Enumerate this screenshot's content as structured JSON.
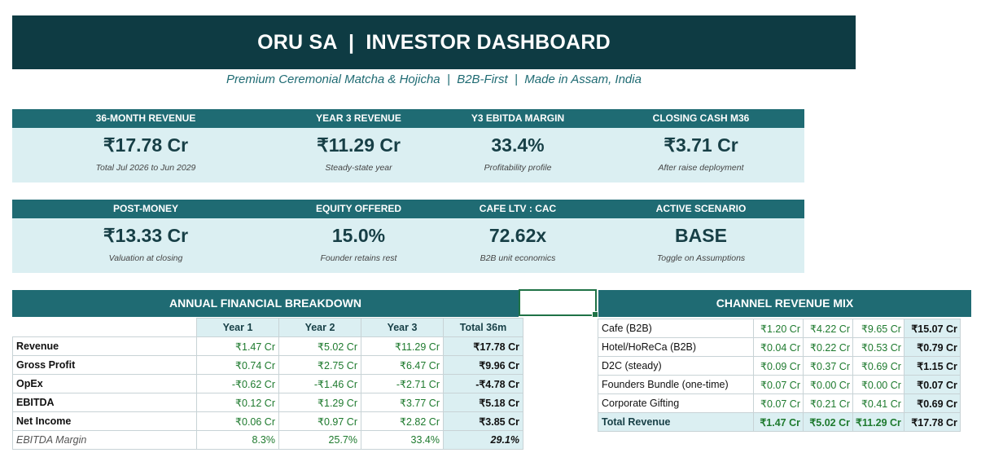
{
  "header": {
    "title": "ORU SA  |  INVESTOR DASHBOARD",
    "subtitle": "Premium Ceremonial Matcha & Hojicha  |  B2B-First  |  Made in Assam, India"
  },
  "kpis_row1": [
    {
      "label": "36-MONTH REVENUE",
      "value": "₹17.78 Cr",
      "note": "Total Jul 2026 to Jun 2029"
    },
    {
      "label": "YEAR 3 REVENUE",
      "value": "₹11.29 Cr",
      "note": "Steady-state year"
    },
    {
      "label": "Y3 EBITDA MARGIN",
      "value": "33.4%",
      "note": "Profitability profile"
    },
    {
      "label": "CLOSING CASH M36",
      "value": "₹3.71 Cr",
      "note": "After raise deployment"
    }
  ],
  "kpis_row2": [
    {
      "label": "POST-MONEY",
      "value": "₹13.33 Cr",
      "note": "Valuation at closing"
    },
    {
      "label": "EQUITY OFFERED",
      "value": "15.0%",
      "note": "Founder retains rest"
    },
    {
      "label": "CAFE LTV : CAC",
      "value": "72.62x",
      "note": "B2B unit economics"
    },
    {
      "label": "ACTIVE SCENARIO",
      "value": "BASE",
      "note": "Toggle on Assumptions"
    }
  ],
  "financials": {
    "title": "ANNUAL FINANCIAL BREAKDOWN",
    "columns": [
      "Year 1",
      "Year 2",
      "Year 3",
      "Total 36m"
    ],
    "rows": [
      {
        "label": "Revenue",
        "y1": "₹1.47 Cr",
        "y2": "₹5.02 Cr",
        "y3": "₹11.29 Cr",
        "total": "₹17.78 Cr"
      },
      {
        "label": "Gross Profit",
        "y1": "₹0.74 Cr",
        "y2": "₹2.75 Cr",
        "y3": "₹6.47 Cr",
        "total": "₹9.96 Cr"
      },
      {
        "label": "OpEx",
        "y1": "-₹0.62 Cr",
        "y2": "-₹1.46 Cr",
        "y3": "-₹2.71 Cr",
        "total": "-₹4.78 Cr"
      },
      {
        "label": "EBITDA",
        "y1": "₹0.12 Cr",
        "y2": "₹1.29 Cr",
        "y3": "₹3.77 Cr",
        "total": "₹5.18 Cr"
      },
      {
        "label": "Net Income",
        "y1": "₹0.06 Cr",
        "y2": "₹0.97 Cr",
        "y3": "₹2.82 Cr",
        "total": "₹3.85 Cr"
      },
      {
        "label": "EBITDA Margin",
        "y1": "8.3%",
        "y2": "25.7%",
        "y3": "33.4%",
        "total": "29.1%"
      }
    ]
  },
  "channel_mix": {
    "title": "CHANNEL REVENUE MIX",
    "rows": [
      {
        "label": "Cafe (B2B)",
        "y1": "₹1.20 Cr",
        "y2": "₹4.22 Cr",
        "y3": "₹9.65 Cr",
        "total": "₹15.07 Cr"
      },
      {
        "label": "Hotel/HoReCa (B2B)",
        "y1": "₹0.04 Cr",
        "y2": "₹0.22 Cr",
        "y3": "₹0.53 Cr",
        "total": "₹0.79 Cr"
      },
      {
        "label": "D2C (steady)",
        "y1": "₹0.09 Cr",
        "y2": "₹0.37 Cr",
        "y3": "₹0.69 Cr",
        "total": "₹1.15 Cr"
      },
      {
        "label": "Founders Bundle (one-time)",
        "y1": "₹0.07 Cr",
        "y2": "₹0.00 Cr",
        "y3": "₹0.00 Cr",
        "total": "₹0.07 Cr"
      },
      {
        "label": "Corporate Gifting",
        "y1": "₹0.07 Cr",
        "y2": "₹0.21 Cr",
        "y3": "₹0.41 Cr",
        "total": "₹0.69 Cr"
      },
      {
        "label": "Total Revenue",
        "y1": "₹1.47 Cr",
        "y2": "₹5.02 Cr",
        "y3": "₹11.29 Cr",
        "total": "₹17.78 Cr"
      }
    ]
  },
  "colors": {
    "banner": "#0e3b43",
    "accent": "#1f6b73",
    "light": "#dbeff2",
    "positive": "#1e7a2e"
  }
}
